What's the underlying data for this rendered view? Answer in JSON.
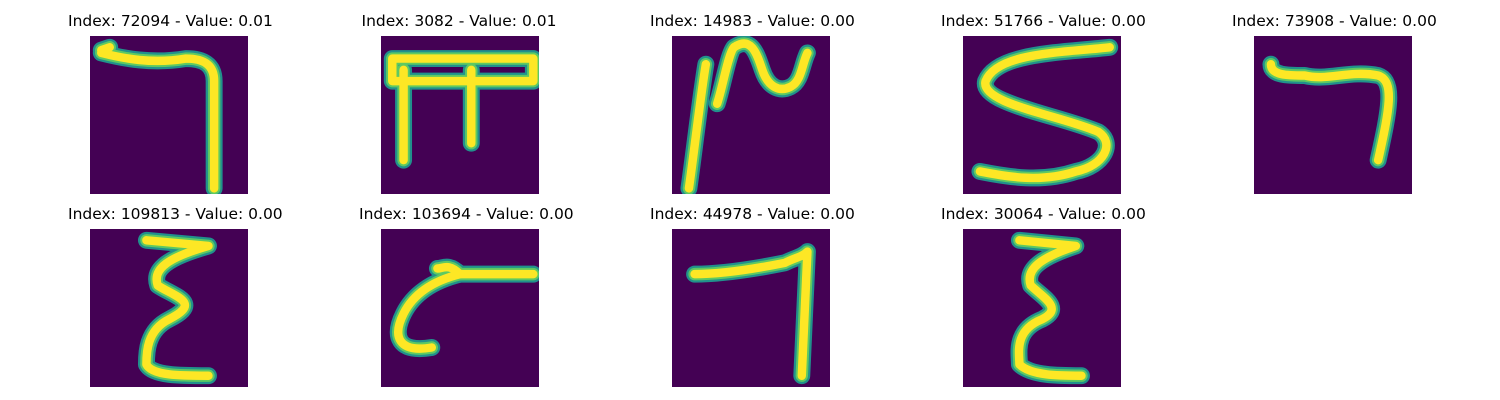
{
  "colors": {
    "background": "#440154",
    "stroke_outer": "#21918c",
    "stroke_mid": "#5ec962",
    "stroke_core": "#fde725"
  },
  "panels": [
    {
      "index": "72094",
      "value": "0.01",
      "title": "Index: 72094 - Value: 0.01",
      "glyph": "seven"
    },
    {
      "index": "3082",
      "value": "0.01",
      "title": "Index: 3082 - Value: 0.01",
      "glyph": "pi"
    },
    {
      "index": "14983",
      "value": "0.00",
      "title": "Index: 14983 - Value: 0.00",
      "glyph": "scribble"
    },
    {
      "index": "51766",
      "value": "0.00",
      "title": "Index: 51766 - Value: 0.00",
      "glyph": "five-s"
    },
    {
      "index": "73908",
      "value": "0.00",
      "title": "Index: 73908 - Value: 0.00",
      "glyph": "seven-short"
    },
    {
      "index": "109813",
      "value": "0.00",
      "title": "Index: 109813 - Value: 0.00",
      "glyph": "epsilon"
    },
    {
      "index": "103694",
      "value": "0.00",
      "title": "Index: 103694 - Value: 0.00",
      "glyph": "hook"
    },
    {
      "index": "44978",
      "value": "0.00",
      "title": "Index: 44978 - Value: 0.00",
      "glyph": "seven-tall"
    },
    {
      "index": "30064",
      "value": "0.00",
      "title": "Index: 30064 - Value: 0.00",
      "glyph": "epsilon-wide"
    }
  ]
}
